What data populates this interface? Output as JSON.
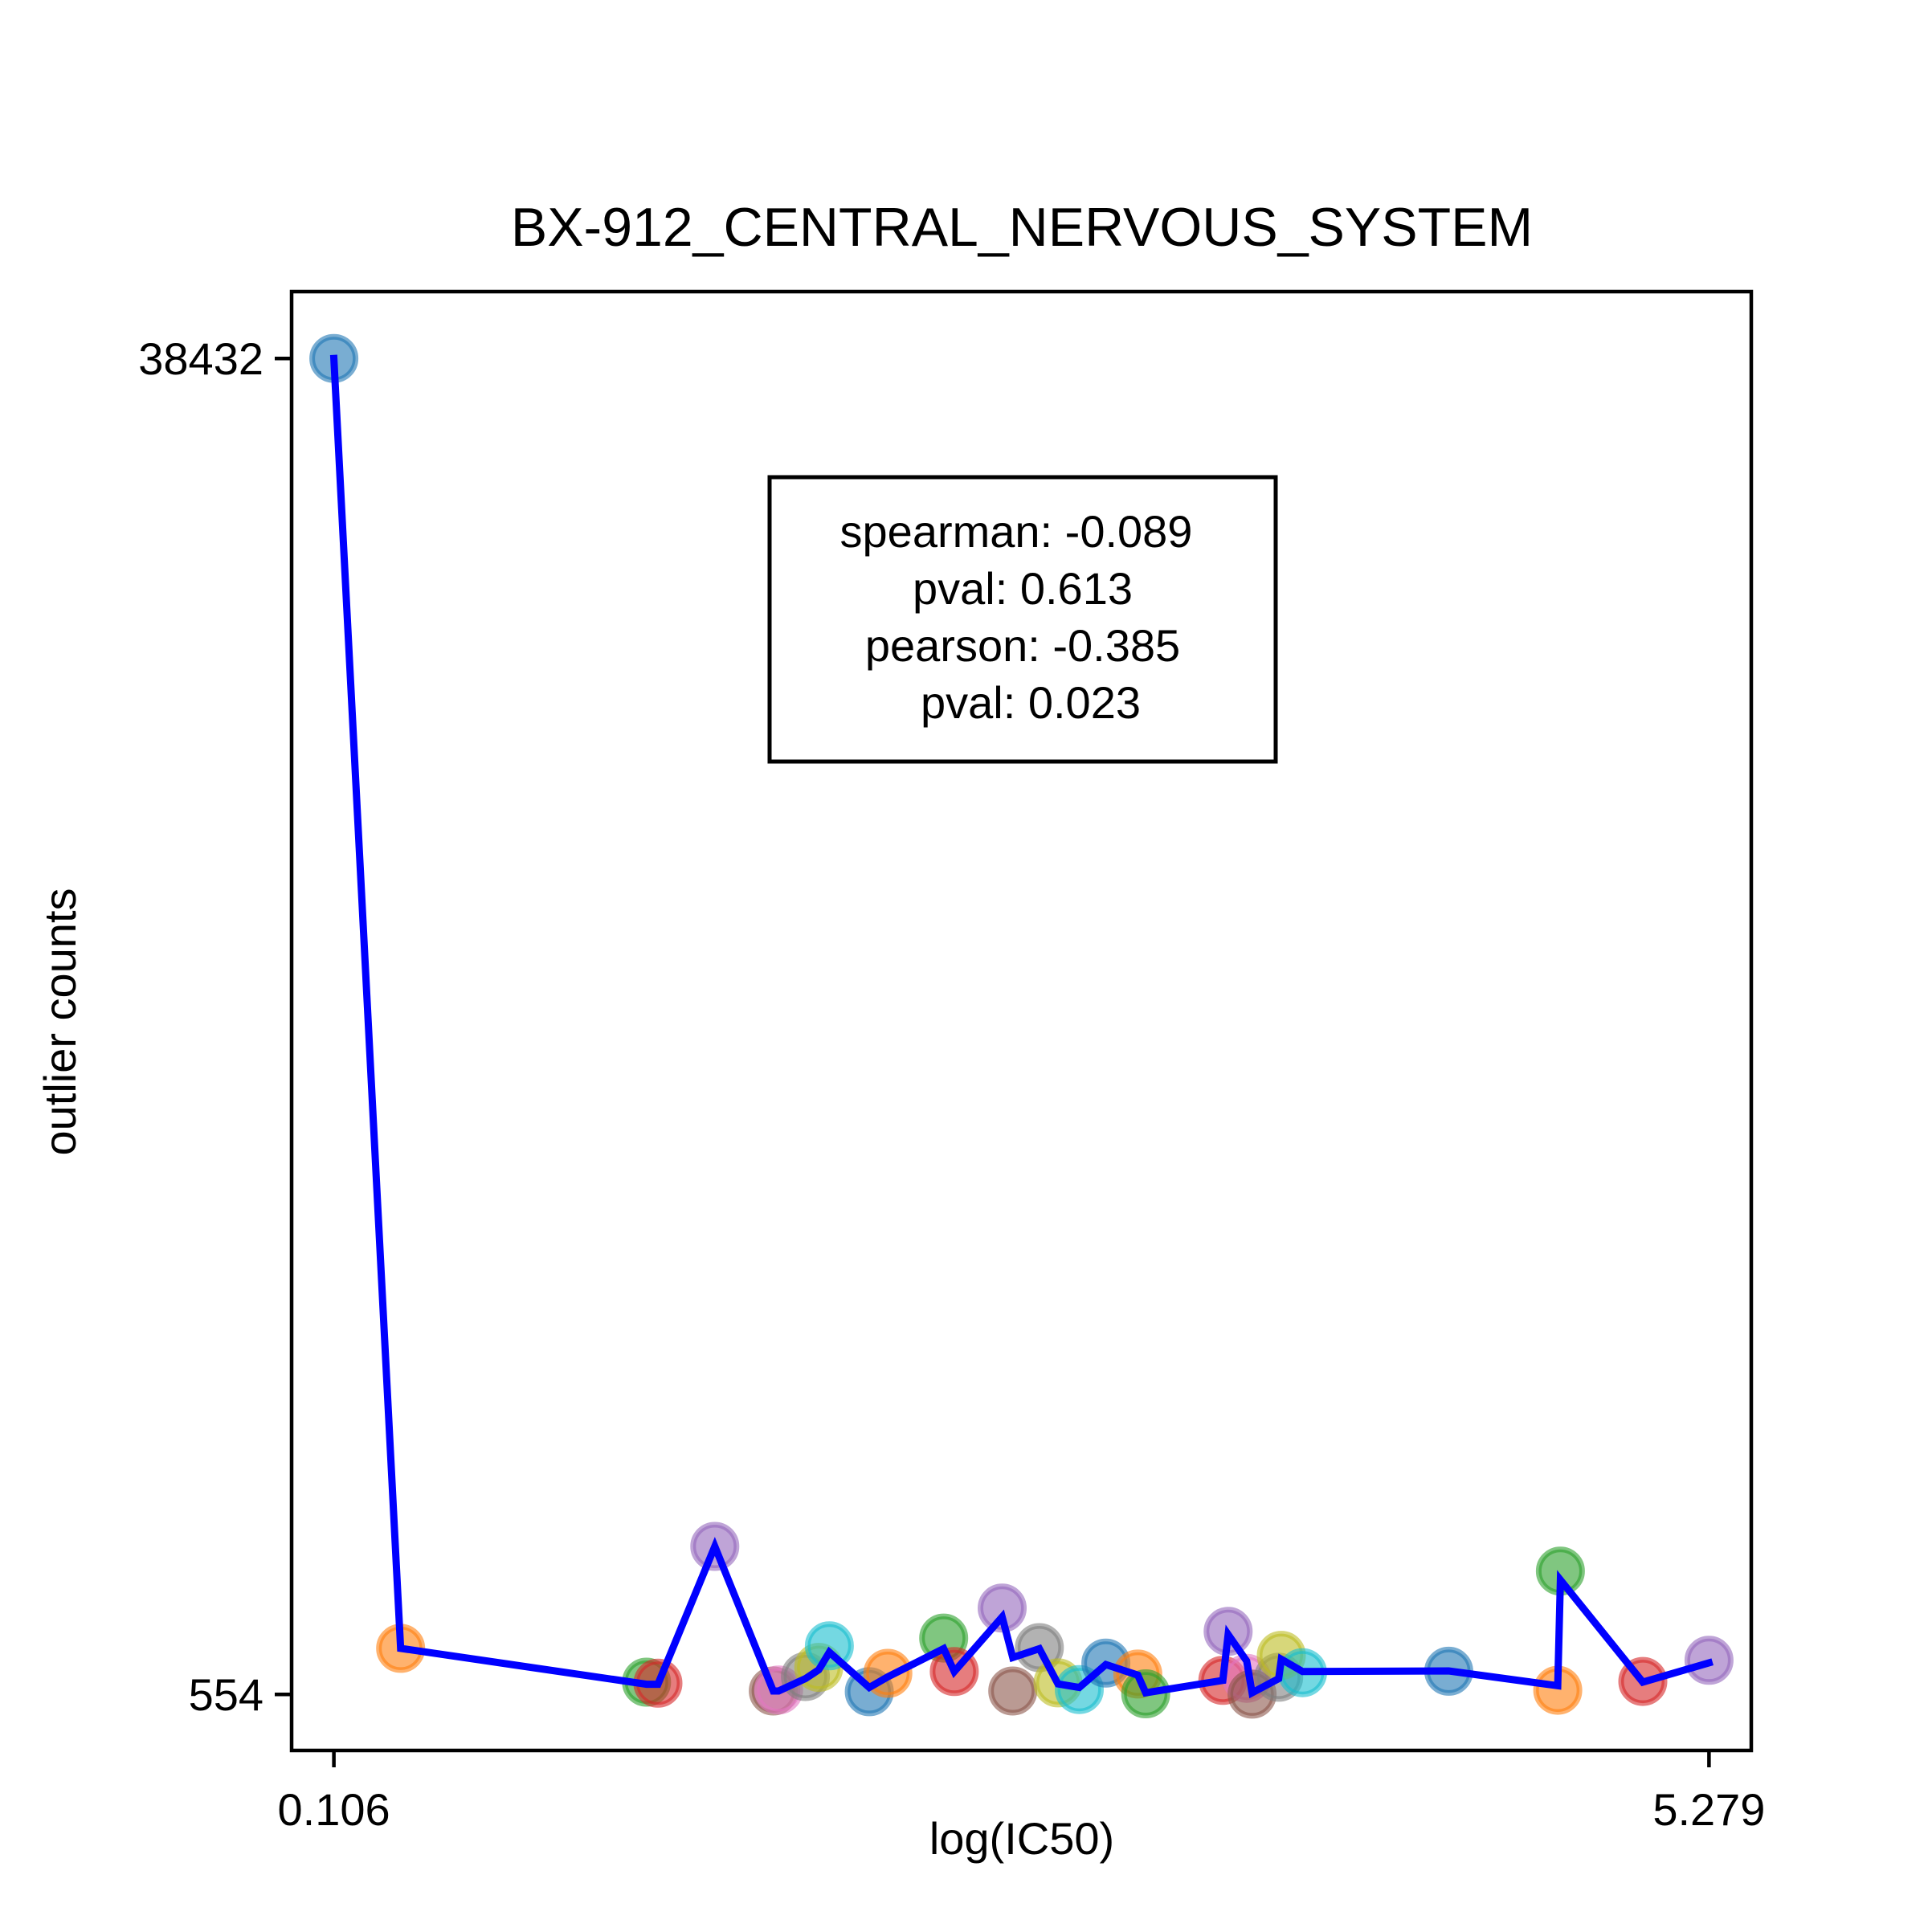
{
  "chart_data": {
    "type": "scatter",
    "title": "BX-912_CENTRAL_NERVOUS_SYSTEM",
    "xlabel": "log(IC50)",
    "ylabel": "outlier counts",
    "x_tick_labels": [
      "0.106",
      "5.279"
    ],
    "y_tick_labels": [
      "554",
      "38432"
    ],
    "xlim": [
      -0.053,
      5.438
    ],
    "ylim": [
      -1036,
      40328
    ],
    "grid": false,
    "annotation": {
      "lines": [
        "spearman: -0.089",
        "pval: 0.613",
        "pearson: -0.385",
        "pval: 0.023"
      ],
      "placement": "upper-center"
    },
    "line_color": "#0000ff",
    "points": [
      {
        "x": 0.106,
        "y": 38432,
        "color": "#1f77b4"
      },
      {
        "x": 0.357,
        "y": 1860,
        "color": "#ff7f0e"
      },
      {
        "x": 1.282,
        "y": 900,
        "color": "#2ca02c"
      },
      {
        "x": 1.325,
        "y": 870,
        "color": "#d62728"
      },
      {
        "x": 1.539,
        "y": 4750,
        "color": "#9467bd"
      },
      {
        "x": 1.759,
        "y": 650,
        "color": "#8c564b"
      },
      {
        "x": 1.779,
        "y": 680,
        "color": "#e377c2"
      },
      {
        "x": 1.88,
        "y": 1060,
        "color": "#7f7f7f"
      },
      {
        "x": 1.93,
        "y": 1320,
        "color": "#bcbd22"
      },
      {
        "x": 1.97,
        "y": 1930,
        "color": "#17becf"
      },
      {
        "x": 2.12,
        "y": 630,
        "color": "#1f77b4"
      },
      {
        "x": 2.19,
        "y": 1150,
        "color": "#ff7f0e"
      },
      {
        "x": 2.4,
        "y": 2150,
        "color": "#2ca02c"
      },
      {
        "x": 2.44,
        "y": 1200,
        "color": "#d62728"
      },
      {
        "x": 2.62,
        "y": 3000,
        "color": "#9467bd"
      },
      {
        "x": 2.66,
        "y": 650,
        "color": "#8c564b"
      },
      {
        "x": 2.76,
        "y": 1880,
        "color": "#7f7f7f"
      },
      {
        "x": 2.83,
        "y": 880,
        "color": "#bcbd22"
      },
      {
        "x": 2.91,
        "y": 690,
        "color": "#17becf"
      },
      {
        "x": 3.01,
        "y": 1440,
        "color": "#1f77b4"
      },
      {
        "x": 3.13,
        "y": 1130,
        "color": "#ff7f0e"
      },
      {
        "x": 3.16,
        "y": 570,
        "color": "#2ca02c"
      },
      {
        "x": 3.45,
        "y": 950,
        "color": "#d62728"
      },
      {
        "x": 3.47,
        "y": 2340,
        "color": "#9467bd"
      },
      {
        "x": 3.54,
        "y": 1010,
        "color": "#e377c2"
      },
      {
        "x": 3.56,
        "y": 560,
        "color": "#8c564b"
      },
      {
        "x": 3.66,
        "y": 1040,
        "color": "#7f7f7f"
      },
      {
        "x": 3.67,
        "y": 1660,
        "color": "#bcbd22"
      },
      {
        "x": 3.75,
        "y": 1170,
        "color": "#17becf"
      },
      {
        "x": 4.3,
        "y": 1210,
        "color": "#1f77b4"
      },
      {
        "x": 4.71,
        "y": 670,
        "color": "#ff7f0e"
      },
      {
        "x": 4.72,
        "y": 4050,
        "color": "#2ca02c"
      },
      {
        "x": 5.03,
        "y": 920,
        "color": "#d62728"
      },
      {
        "x": 5.279,
        "y": 1520,
        "color": "#9467bd"
      }
    ],
    "line": [
      {
        "x": 0.106,
        "y": 38432
      },
      {
        "x": 0.357,
        "y": 1860
      },
      {
        "x": 1.282,
        "y": 840
      },
      {
        "x": 1.325,
        "y": 840
      },
      {
        "x": 1.539,
        "y": 4750
      },
      {
        "x": 1.759,
        "y": 650
      },
      {
        "x": 1.779,
        "y": 650
      },
      {
        "x": 1.88,
        "y": 1000
      },
      {
        "x": 1.93,
        "y": 1250
      },
      {
        "x": 1.97,
        "y": 1750
      },
      {
        "x": 2.12,
        "y": 750
      },
      {
        "x": 2.19,
        "y": 1050
      },
      {
        "x": 2.4,
        "y": 1850
      },
      {
        "x": 2.44,
        "y": 1200
      },
      {
        "x": 2.62,
        "y": 2750
      },
      {
        "x": 2.66,
        "y": 1600
      },
      {
        "x": 2.76,
        "y": 1850
      },
      {
        "x": 2.83,
        "y": 850
      },
      {
        "x": 2.91,
        "y": 750
      },
      {
        "x": 3.01,
        "y": 1400
      },
      {
        "x": 3.13,
        "y": 1100
      },
      {
        "x": 3.16,
        "y": 600
      },
      {
        "x": 3.45,
        "y": 950
      },
      {
        "x": 3.47,
        "y": 2250
      },
      {
        "x": 3.54,
        "y": 1500
      },
      {
        "x": 3.56,
        "y": 600
      },
      {
        "x": 3.66,
        "y": 1000
      },
      {
        "x": 3.67,
        "y": 1550
      },
      {
        "x": 3.75,
        "y": 1200
      },
      {
        "x": 4.3,
        "y": 1220
      },
      {
        "x": 4.71,
        "y": 800
      },
      {
        "x": 4.72,
        "y": 3800
      },
      {
        "x": 5.03,
        "y": 900
      },
      {
        "x": 5.279,
        "y": 1450
      }
    ]
  }
}
